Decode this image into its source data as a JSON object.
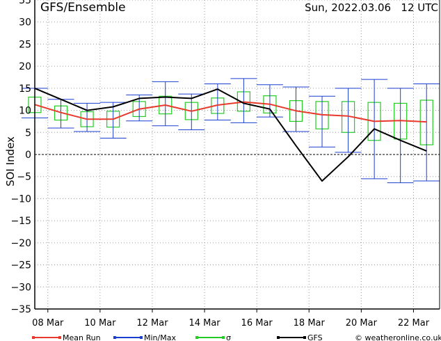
{
  "chart_data": {
    "type": "line",
    "title": "GFS/Ensemble",
    "run_label": "Sun, 2022.03.06   12 UTC",
    "ylabel": "SOI Index",
    "ylim": [
      -35,
      35
    ],
    "yticks": [
      -35,
      -30,
      -25,
      -20,
      -15,
      -10,
      -5,
      0,
      5,
      10,
      15,
      20,
      25,
      30,
      35
    ],
    "xlim": [
      0,
      15.5
    ],
    "xticks": [
      {
        "x": 0.5,
        "label": "08 Mar"
      },
      {
        "x": 2.5,
        "label": "10 Mar"
      },
      {
        "x": 4.5,
        "label": "12 Mar"
      },
      {
        "x": 6.5,
        "label": "14 Mar"
      },
      {
        "x": 8.5,
        "label": "16 Mar"
      },
      {
        "x": 10.5,
        "label": "18 Mar"
      },
      {
        "x": 12.5,
        "label": "20 Mar"
      },
      {
        "x": 14.5,
        "label": "22 Mar"
      }
    ],
    "grid": true,
    "x": [
      0,
      1,
      2,
      3,
      4,
      5,
      6,
      7,
      8,
      9,
      10,
      11,
      12,
      13,
      14,
      15
    ],
    "series": [
      {
        "name": "Mean Run",
        "color": "#e8392c",
        "values": [
          11.3,
          9.5,
          8.0,
          8.0,
          10.3,
          11.2,
          9.8,
          11.2,
          11.9,
          11.4,
          9.9,
          9.0,
          8.7,
          7.5,
          7.7,
          7.4
        ]
      },
      {
        "name": "GFS",
        "color": "#000000",
        "values": [
          15.0,
          12.5,
          10.0,
          10.8,
          12.7,
          13.0,
          12.7,
          14.8,
          11.6,
          10.3,
          2.0,
          -6.0,
          -0.5,
          5.8,
          3.2,
          0.8
        ]
      }
    ],
    "minmax": {
      "name": "Min/Max",
      "color": "#1a3fd0",
      "min": [
        8.3,
        6.0,
        5.2,
        3.7,
        7.6,
        6.5,
        5.6,
        7.8,
        7.2,
        8.5,
        5.2,
        1.7,
        0.5,
        -5.5,
        -6.4,
        -6.0
      ],
      "max": [
        15.0,
        12.5,
        11.6,
        11.8,
        13.5,
        16.5,
        13.7,
        16.0,
        17.2,
        15.8,
        15.3,
        13.2,
        15.0,
        17.0,
        15.0,
        16.0
      ]
    },
    "sigma": {
      "name": "σ",
      "color": "#22cc22",
      "low": [
        9.5,
        7.8,
        6.3,
        6.2,
        8.6,
        9.2,
        7.9,
        9.3,
        9.8,
        9.4,
        7.5,
        5.8,
        5.0,
        3.2,
        3.5,
        2.2
      ],
      "high": [
        13.0,
        11.0,
        9.7,
        9.8,
        12.0,
        13.2,
        11.8,
        12.8,
        14.2,
        13.3,
        12.2,
        12.0,
        12.0,
        11.8,
        11.6,
        12.3
      ]
    },
    "legend": [
      {
        "name": "Mean Run",
        "color": "#e8392c"
      },
      {
        "name": "Min/Max",
        "color": "#1a3fd0"
      },
      {
        "name": "σ",
        "color": "#22cc22"
      },
      {
        "name": "GFS",
        "color": "#000000"
      }
    ],
    "legend_position": "bottom",
    "copyright": "© weatheronline.co.uk"
  }
}
